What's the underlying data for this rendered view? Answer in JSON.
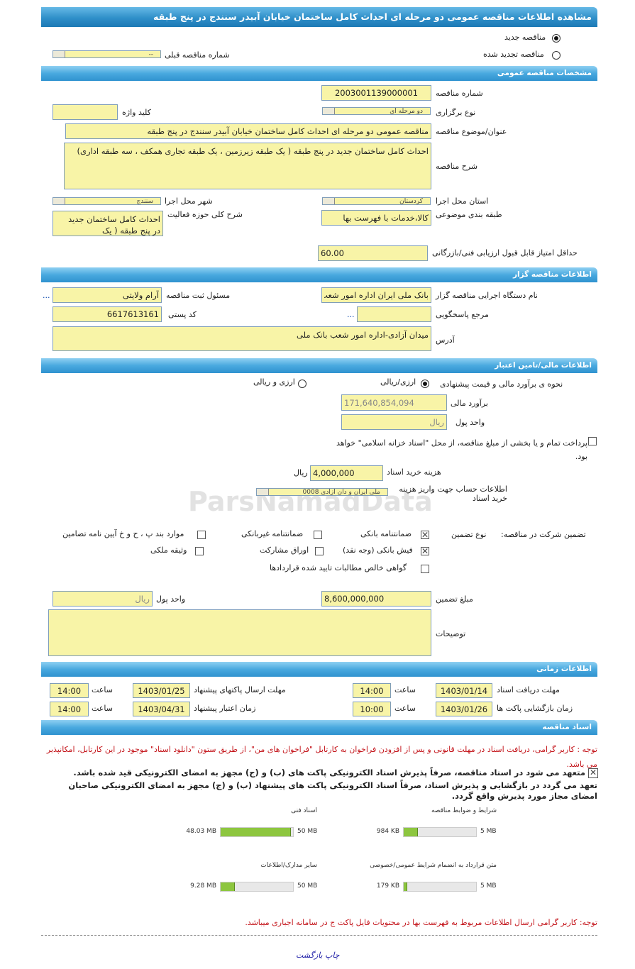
{
  "header": {
    "title": "مشاهده اطلاعات مناقصه عمومی دو مرحله ای احداث کامل ساختمان خیابان آبیدر سنندج در پنج طبقه"
  },
  "tender_kind": {
    "new_label": "مناقصه جدید",
    "renewed_label": "مناقصه تجدید شده",
    "selected": "new",
    "prev_number_label": "شماره مناقصه قبلی",
    "prev_number_value": "--"
  },
  "general": {
    "section_title": "مشخصات مناقصه عمومی",
    "number_label": "شماره مناقصه",
    "number_value": "2003001139000001",
    "keyword_label": "کلید واژه",
    "keyword_value": "",
    "type_label": "نوع برگزاری",
    "type_value": "دو مرحله ای",
    "subject_label": "عنوان/موضوع مناقصه",
    "subject_value": "مناقصه عمومی دو مرحله ای احداث کامل ساختمان خیابان آبیدر سنندج در پنج طبقه",
    "description_label": "شرح مناقصه",
    "description_value": "احداث کامل ساختمان جدید در پنج طبقه ( یک طبقه زیرزمین ، یک طبقه تجاری همکف ، سه طبقه اداری)",
    "city_label": "شهر محل اجرا",
    "city_value": "سنندج",
    "province_label": "استان محل اجرا",
    "province_value": "کردستان",
    "scope_label": "شرح کلی حوزه فعالیت",
    "scope_value": "احداث کامل ساختمان جدید در پنج طبقه ( یک",
    "category_label": "طبقه بندی موضوعی",
    "category_value": "کالا،خدمات با فهرست بها",
    "min_score_label": "حداقل امتیاز قابل قبول ارزیابی فنی/بازرگانی",
    "min_score_value": "60.00"
  },
  "organizer": {
    "section_title": "اطلاعات مناقصه گزار",
    "org_label": "نام دستگاه اجرایی مناقصه گزار",
    "org_value": "بانک ملی ایران اداره امور شعب",
    "responsible_label": "مسئول ثبت مناقصه",
    "responsible_value": "آرام ولایتی",
    "more": "...",
    "reference_label": "مرجع پاسخگویی",
    "reference_value": "",
    "reference_more": "...",
    "postal_label": "کد پستی",
    "postal_value": "6617613161",
    "address_label": "آدرس",
    "address_value": "میدان آزادی-اداره امور شعب بانک ملی"
  },
  "finance": {
    "section_title": "اطلاعات مالی/تامین اعتبار",
    "method_label": "نحوه ی برآورد مالی و قیمت پیشنهادی",
    "opt_rial": "ارزی/ریالی",
    "opt_both": "ارزی و ریالی",
    "selected": "rial",
    "estimate_label": "برآورد مالی",
    "estimate_value": "171,640,854,094",
    "currency_label": "واحد پول",
    "currency_value": "ریال",
    "treasury_text": "پرداخت تمام و یا بخشی از مبلغ مناقصه، از محل \"اسناد خزانه اسلامی\" خواهد بود.",
    "treasury_checked": false,
    "doc_fee_label": "هزینه خرید اسناد",
    "doc_fee_value": "4,000,000",
    "doc_fee_unit": "ریال",
    "account_label": "اطلاعات حساب جهت واریز هزینه خرید اسناد",
    "account_value": "ملی ایران و دان ازادی 0008"
  },
  "guarantee": {
    "title": "تضمین شرکت در مناقصه:",
    "type_label": "نوع تضمین",
    "options": [
      {
        "label": "ضمانتنامه بانکی",
        "checked": true
      },
      {
        "label": "ضمانتنامه غیربانکی",
        "checked": false
      },
      {
        "label": "موارد بند پ ، ح و خ آیین نامه تضامین",
        "checked": false
      },
      {
        "label": "فیش بانکی (وجه نقد)",
        "checked": true
      },
      {
        "label": "اوراق مشارکت",
        "checked": false
      },
      {
        "label": "وثیقه ملکی",
        "checked": false
      },
      {
        "label": "گواهی خالص مطالبات تایید شده قراردادها",
        "checked": false
      }
    ],
    "amount_label": "مبلغ تضمین",
    "amount_value": "8,600,000,000",
    "unit_label": "واحد پول",
    "unit_value": "ریال",
    "notes_label": "توضیحات",
    "notes_value": ""
  },
  "timing": {
    "section_title": "اطلاعات زمانی",
    "time_label": "ساعت",
    "doc_receive_label": "مهلت دریافت اسناد",
    "doc_receive_date": "1403/01/14",
    "doc_receive_time": "14:00",
    "submit_label": "مهلت ارسال پاکتهای پیشنهاد",
    "submit_date": "1403/01/25",
    "submit_time": "14:00",
    "opening_label": "زمان بازگشایی پاکت ها",
    "opening_date": "1403/01/26",
    "opening_time": "10:00",
    "validity_label": "زمان اعتبار پیشنهاد",
    "validity_date": "1403/04/31",
    "validity_time": "14:00"
  },
  "documents": {
    "section_title": "اسناد مناقصه",
    "note1": "توجه : کاربر گرامی، دریافت اسناد در مهلت قانونی و پس از افزودن فراخوان به کارتابل \"فراخوان های من\"، از طریق ستون \"دانلود اسناد\" موجود در این کارتابل، امکانپذیر می باشد.",
    "commit1": "متعهد می شود در اسناد مناقصه، صرفاً پذیرش اسناد الکترونیکی پاکت های (ب) و (ج) مجهز به امضای الکترونیکی قید شده باشد.",
    "commit2": "تعهد می گردد در بازگشایی و پذیرش اسناد، صرفاً اسناد الکترونیکی پاکت های پیشنهاد (ب) و (ج) مجهز به امضای الکترونیکی صاحبان امضای مجاز مورد پذیرش واقع گردد.",
    "files": [
      {
        "title": "شرایط و ضوابط مناقصه",
        "used": "984 KB",
        "max": "5 MB",
        "fraction": 0.19
      },
      {
        "title": "اسناد فنی",
        "used": "48.03 MB",
        "max": "50 MB",
        "fraction": 0.96
      },
      {
        "title": "متن قرارداد به انضمام شرایط عمومی/خصوصی",
        "used": "179 KB",
        "max": "5 MB",
        "fraction": 0.035
      },
      {
        "title": "سایر مدارک/اطلاعات",
        "used": "9.28 MB",
        "max": "50 MB",
        "fraction": 0.186
      }
    ],
    "note2": "توجه: کاربر گرامی ارسال اطلاعات مربوط به فهرست بها در محتویات فایل پاکت ج در سامانه اجباری میباشد."
  },
  "footer": {
    "print_label": "چاپ",
    "back_label": "بازگشت"
  },
  "watermark": "ParsNamadData"
}
